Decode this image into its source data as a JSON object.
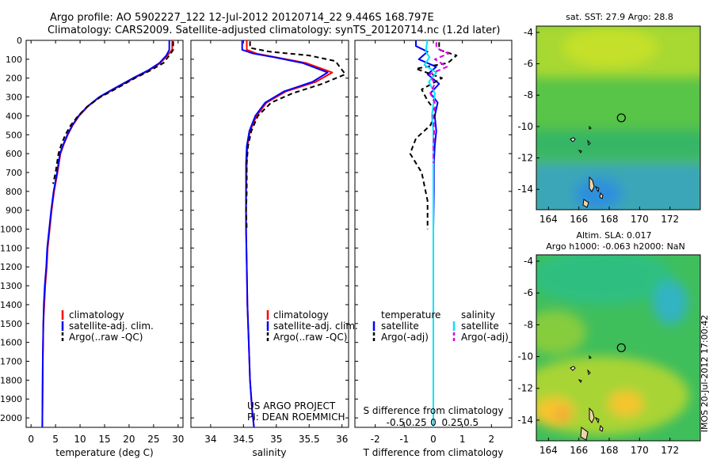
{
  "header": {
    "line1": "Argo profile: AO 5902227_122 12-Jul-2012 20120714_22 9.446S 168.797E",
    "line2": "Climatology: CARS2009. Satellite-adjusted climatology: synTS_20120714.nc (1.2d later)"
  },
  "colors": {
    "climatology": "#ff0000",
    "satellite": "#0000ff",
    "argo": "#000000",
    "salinity_satellite": "#00e5ff",
    "salinity_argo": "#dd00dd"
  },
  "credits": {
    "line1": "US ARGO PROJECT",
    "line2": "PI: DEAN ROEMMICH"
  },
  "timestamp": "IMOS 20-Jul-2012 17:00:42",
  "chart_data": [
    {
      "type": "line",
      "xlabel": "temperature (deg C)",
      "ylim": [
        2050,
        0
      ],
      "xlim": [
        -1,
        31
      ],
      "xticks": [
        0,
        5,
        10,
        15,
        20,
        25,
        30
      ],
      "yticks": [
        0,
        100,
        200,
        300,
        400,
        500,
        600,
        700,
        800,
        900,
        1000,
        1100,
        1200,
        1300,
        1400,
        1500,
        1600,
        1700,
        1800,
        1900,
        2000
      ],
      "legend_position": "lower-left",
      "series": [
        {
          "name": "climatology",
          "color": "#ff0000",
          "x": [
            28.8,
            28.8,
            27.8,
            26.4,
            24.0,
            21.0,
            17.5,
            14.0,
            11.6,
            9.8,
            8.5,
            7.5,
            6.7,
            6.0,
            5.4,
            4.7,
            4.2,
            3.8,
            3.4,
            3.2,
            2.9,
            2.7,
            2.5,
            2.4,
            2.3
          ],
          "y": [
            0,
            50,
            80,
            120,
            160,
            200,
            250,
            300,
            350,
            400,
            450,
            500,
            550,
            600,
            700,
            800,
            900,
            1000,
            1100,
            1200,
            1300,
            1400,
            1500,
            1700,
            2050
          ]
        },
        {
          "name": "satellite-adj. clim.",
          "color": "#0000ff",
          "x": [
            28.2,
            28.2,
            27.6,
            26.2,
            23.8,
            20.8,
            17.3,
            13.9,
            11.5,
            9.7,
            8.4,
            7.4,
            6.6,
            5.9,
            5.3,
            4.6,
            4.1,
            3.7,
            3.3,
            3.1,
            2.8,
            2.6,
            2.5,
            2.4,
            2.3
          ],
          "y": [
            0,
            50,
            80,
            120,
            160,
            200,
            250,
            300,
            350,
            400,
            450,
            500,
            550,
            600,
            700,
            800,
            900,
            1000,
            1100,
            1200,
            1300,
            1400,
            1500,
            1700,
            2050
          ]
        },
        {
          "name": "Argo(..raw -QC)",
          "color": "#000000",
          "x": [
            29.0,
            29.0,
            28.2,
            27.0,
            24.3,
            21.2,
            17.8,
            14.2,
            11.5,
            9.6,
            8.1,
            7.0,
            6.2,
            5.6,
            5.0,
            4.5
          ],
          "y": [
            5,
            50,
            80,
            120,
            160,
            200,
            250,
            300,
            350,
            400,
            450,
            500,
            550,
            600,
            700,
            760
          ]
        }
      ]
    },
    {
      "type": "line",
      "xlabel": "salinity",
      "ylim": [
        2050,
        0
      ],
      "xlim": [
        33.7,
        36.1
      ],
      "xticks": [
        34,
        34.5,
        35,
        35.5,
        36
      ],
      "legend_position": "lower-right",
      "series": [
        {
          "name": "climatology",
          "color": "#ff0000",
          "x": [
            34.55,
            34.55,
            34.7,
            35.0,
            35.45,
            35.85,
            35.6,
            35.15,
            34.85,
            34.7,
            34.6,
            34.56,
            34.55,
            34.54,
            34.54,
            34.55,
            34.56,
            34.58,
            34.6,
            34.63,
            34.66
          ],
          "y": [
            0,
            50,
            70,
            90,
            120,
            170,
            220,
            270,
            330,
            400,
            480,
            560,
            650,
            800,
            1000,
            1200,
            1400,
            1600,
            1800,
            1950,
            2050
          ]
        },
        {
          "name": "satellite-adj. clim.",
          "color": "#0000ff",
          "x": [
            34.48,
            34.48,
            34.65,
            34.98,
            35.4,
            35.78,
            35.55,
            35.12,
            34.83,
            34.68,
            34.59,
            34.55,
            34.54,
            34.54,
            34.54,
            34.55,
            34.56,
            34.58,
            34.6,
            34.63,
            34.66
          ],
          "y": [
            0,
            50,
            70,
            90,
            120,
            170,
            220,
            270,
            330,
            400,
            480,
            560,
            650,
            800,
            1000,
            1200,
            1400,
            1600,
            1800,
            1950,
            2050
          ]
        },
        {
          "name": "Argo(..raw -QC)",
          "color": "#000000",
          "x": [
            34.6,
            34.6,
            34.9,
            35.5,
            35.9,
            36.05,
            35.7,
            35.25,
            34.92,
            34.72,
            34.62,
            34.57,
            34.55,
            34.55,
            34.54,
            34.55
          ],
          "y": [
            5,
            40,
            60,
            80,
            110,
            180,
            230,
            280,
            330,
            400,
            480,
            560,
            650,
            800,
            900,
            1000
          ]
        }
      ]
    },
    {
      "type": "line",
      "xlabel": "T difference from climatology",
      "xlabel_top": "S difference from climatology",
      "ylim": [
        2050,
        0
      ],
      "xlim": [
        -2.7,
        2.7
      ],
      "xticks": [
        -2,
        -1,
        0,
        1,
        2
      ],
      "xticks_top": [
        -0.5,
        -0.25,
        0,
        0.25,
        0.5
      ],
      "legend_titles": [
        "temperature",
        "salinity"
      ],
      "series": [
        {
          "name": "satellite",
          "group": "temperature",
          "color": "#0000ff",
          "x": [
            -0.6,
            -0.6,
            -0.2,
            -0.5,
            0.1,
            -0.2,
            0.2,
            -0.1,
            0.15,
            0.05,
            0.1,
            0.05,
            0.02,
            0.02,
            0.0,
            0.0,
            0.0,
            0.0,
            0.0
          ],
          "y": [
            0,
            30,
            60,
            100,
            140,
            180,
            230,
            280,
            330,
            400,
            480,
            560,
            650,
            800,
            1000,
            1200,
            1500,
            1800,
            2050
          ]
        },
        {
          "name": "Argo(-adj)",
          "group": "temperature",
          "color": "#000000",
          "x": [
            0.2,
            0.2,
            0.8,
            0.5,
            -0.6,
            0.3,
            -0.4,
            -0.2,
            0.1,
            -0.1,
            -0.6,
            -0.8,
            -0.4,
            -0.2,
            -0.2
          ],
          "y": [
            10,
            50,
            80,
            120,
            150,
            200,
            260,
            320,
            380,
            450,
            520,
            600,
            700,
            850,
            1000
          ]
        },
        {
          "name": "satellite",
          "group": "salinity",
          "color": "#00e5ff",
          "x": [
            -0.08,
            -0.1,
            -0.05,
            -0.12,
            0.04,
            -0.06,
            0.02,
            0.0,
            -0.02,
            0.0,
            0.0,
            0.0,
            0.0,
            0.0,
            0.0,
            0.0,
            0.0
          ],
          "y": [
            0,
            60,
            90,
            130,
            170,
            220,
            280,
            340,
            400,
            480,
            560,
            650,
            800,
            1000,
            1400,
            1800,
            2050
          ]
        },
        {
          "name": "Argo(-adj)",
          "group": "salinity",
          "color": "#dd00dd",
          "x": [
            0.04,
            0.04,
            0.2,
            0.02,
            0.18,
            -0.05,
            0.02,
            -0.04,
            0.03,
            0.0,
            0.01,
            0.0,
            0.0
          ],
          "y": [
            10,
            40,
            70,
            100,
            140,
            180,
            230,
            280,
            340,
            400,
            480,
            560,
            650
          ]
        }
      ]
    },
    {
      "type": "heatmap",
      "title": "sat. SST: 27.9  Argo: 28.8",
      "xlim": [
        163.2,
        174.0
      ],
      "ylim": [
        -15.3,
        -3.6
      ],
      "xticks": [
        164,
        166,
        168,
        170,
        172
      ],
      "yticks": [
        -4,
        -6,
        -8,
        -10,
        -12,
        -14
      ],
      "marker": {
        "x": 168.797,
        "y": -9.446
      }
    },
    {
      "type": "heatmap",
      "title": "Altim. SLA: 0.017",
      "subtitle": "Argo h1000: -0.063  h2000: NaN",
      "xlim": [
        163.2,
        174.0
      ],
      "ylim": [
        -15.3,
        -3.6
      ],
      "xticks": [
        164,
        166,
        168,
        170,
        172
      ],
      "yticks": [
        -4,
        -6,
        -8,
        -10,
        -12,
        -14
      ],
      "marker": {
        "x": 168.797,
        "y": -9.446
      }
    }
  ]
}
